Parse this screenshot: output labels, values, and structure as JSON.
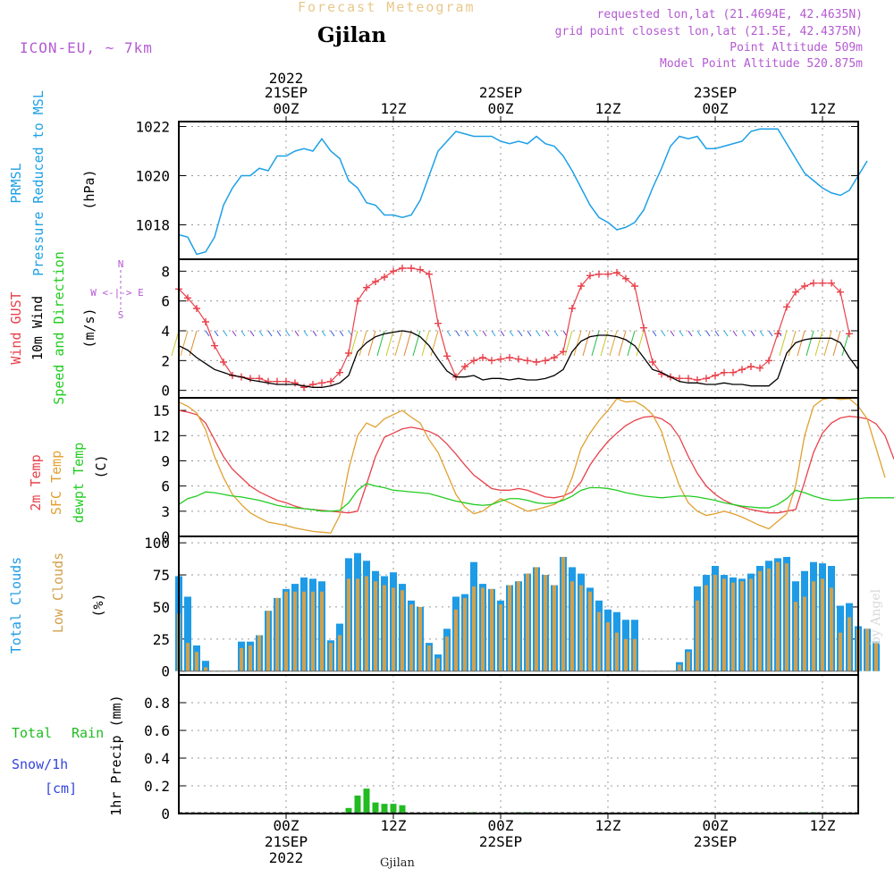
{
  "header": {
    "product": "Forecast Meteogram",
    "location": "Gjilan",
    "model": "ICON-EU, ~ 7km",
    "requested": "requested lon,lat (21.4694E, 42.4635N)",
    "grid_point": "grid point closest lon,lat (21.5E, 42.4375N)",
    "point_altitude": "Point Altitude 509m",
    "model_altitude": "Model Point Altitude 520.875m",
    "footer_location": "Gjilan",
    "watermark": "by Angel"
  },
  "time_axis": {
    "top_labels": [
      "2022",
      "21SEP",
      "00Z",
      "12Z",
      "22SEP",
      "00Z",
      "12Z",
      "23SEP",
      "00Z",
      "12Z"
    ],
    "bottom_labels": [
      "00Z",
      "21SEP",
      "2022",
      "12Z",
      "00Z",
      "22SEP",
      "12Z",
      "00Z",
      "23SEP",
      "12Z"
    ]
  },
  "panel_labels": {
    "pressure": [
      "PRMSL",
      "Pressure Reduced to MSL",
      "(hPa)"
    ],
    "wind": [
      "Wind GUST",
      "10m Wind",
      "Speed and Direction",
      "(m/s)"
    ],
    "compass": [
      "N",
      "W <-|-> E",
      "S"
    ],
    "temp": [
      "2m Temp",
      "SFC Temp",
      "dewpt Temp",
      "(C)"
    ],
    "clouds": [
      "Total Clouds",
      "Low Clouds",
      "(%)"
    ],
    "precip": [
      "Total",
      "Rain",
      "Snow/1h",
      "[cm]",
      "1hr Precip (mm)"
    ]
  },
  "colors": {
    "pressure": "#1ea0e6",
    "gust": "#e8414b",
    "wind": "#000000",
    "temp": "#e8414b",
    "sfc": "#e0a030",
    "dewpt": "#22cc22",
    "total_clouds": "#1e9be6",
    "low_clouds": "#d2a04b",
    "rain": "#22bb22",
    "snow": "#3344dd",
    "model": "#b45ad2"
  },
  "chart_data": [
    {
      "type": "line",
      "title": "PRMSL Pressure Reduced to MSL",
      "ylabel": "(hPa)",
      "ylim": [
        1016.6,
        1022.2
      ],
      "yticks": [
        1018,
        1020,
        1022
      ],
      "x_start_h": -12,
      "series": [
        {
          "name": "PRMSL",
          "values": [
            1017.6,
            1017.5,
            1016.8,
            1016.9,
            1017.5,
            1018.8,
            1019.5,
            1020.0,
            1020.0,
            1020.3,
            1020.2,
            1020.8,
            1020.8,
            1021.0,
            1021.1,
            1021.0,
            1021.5,
            1021.0,
            1020.7,
            1019.8,
            1019.5,
            1018.9,
            1018.8,
            1018.4,
            1018.4,
            1018.3,
            1018.4,
            1019.0,
            1020.0,
            1021.0,
            1021.4,
            1021.8,
            1021.7,
            1021.6,
            1021.6,
            1021.6,
            1021.4,
            1021.3,
            1021.4,
            1021.3,
            1021.6,
            1021.3,
            1021.2,
            1020.8,
            1020.2,
            1019.5,
            1018.8,
            1018.3,
            1018.1,
            1017.8,
            1017.9,
            1018.1,
            1018.6,
            1019.5,
            1020.3,
            1021.2,
            1021.6,
            1021.5,
            1021.6,
            1021.1,
            1021.1,
            1021.2,
            1021.3,
            1021.4,
            1021.8,
            1021.9,
            1021.9,
            1021.9,
            1021.3,
            1020.7,
            1020.1,
            1019.8,
            1019.5,
            1019.3,
            1019.2,
            1019.4,
            1020.0,
            1020.6
          ]
        }
      ]
    },
    {
      "type": "line",
      "title": "Wind GUST / 10m Wind Speed and Direction",
      "ylabel": "(m/s)",
      "ylim": [
        -0.5,
        8.8
      ],
      "yticks": [
        0,
        2,
        4,
        6,
        8
      ],
      "x_start_h": -12,
      "series": [
        {
          "name": "Wind GUST",
          "values": [
            6.8,
            6.2,
            5.5,
            4.6,
            3.0,
            1.9,
            1.0,
            0.9,
            0.8,
            0.8,
            0.6,
            0.6,
            0.6,
            0.5,
            0.2,
            0.4,
            0.5,
            0.6,
            1.2,
            2.5,
            6.0,
            6.9,
            7.3,
            7.6,
            8.0,
            8.2,
            8.2,
            8.1,
            7.8,
            4.5,
            2.3,
            0.9,
            1.6,
            2.0,
            2.2,
            2.0,
            2.1,
            2.2,
            2.1,
            2.0,
            1.9,
            2.0,
            2.2,
            2.6,
            5.5,
            7.0,
            7.7,
            7.8,
            7.8,
            7.9,
            7.5,
            7.0,
            4.2,
            1.9,
            1.1,
            0.9,
            0.8,
            0.8,
            0.7,
            0.8,
            1.0,
            1.2,
            1.2,
            1.4,
            1.6,
            1.5,
            2.0,
            3.8,
            5.6,
            6.6,
            7.0,
            7.2,
            7.2,
            7.2,
            6.6,
            3.8
          ]
        },
        {
          "name": "10m Wind",
          "values": [
            3.0,
            2.7,
            2.2,
            1.8,
            1.4,
            1.2,
            1.0,
            0.9,
            0.7,
            0.6,
            0.5,
            0.4,
            0.4,
            0.4,
            0.3,
            0.2,
            0.2,
            0.3,
            0.5,
            1.0,
            2.6,
            3.2,
            3.6,
            3.8,
            3.9,
            4.0,
            3.9,
            3.6,
            3.0,
            2.1,
            1.3,
            0.9,
            0.9,
            1.0,
            0.7,
            0.8,
            0.8,
            0.7,
            0.8,
            0.7,
            0.7,
            0.8,
            1.0,
            1.4,
            2.6,
            3.3,
            3.6,
            3.7,
            3.7,
            3.6,
            3.4,
            3.0,
            2.2,
            1.4,
            1.2,
            0.9,
            0.6,
            0.5,
            0.5,
            0.4,
            0.4,
            0.5,
            0.4,
            0.4,
            0.3,
            0.3,
            0.3,
            0.8,
            2.5,
            3.2,
            3.4,
            3.5,
            3.5,
            3.5,
            3.2,
            2.2,
            1.4
          ]
        }
      ]
    },
    {
      "type": "line",
      "title": "2m Temp / SFC Temp / dewpt Temp",
      "ylabel": "(C)",
      "ylim": [
        0,
        16.5
      ],
      "yticks": [
        0,
        3,
        6,
        9,
        12,
        15
      ],
      "x_start_h": -12,
      "series": [
        {
          "name": "2m Temp",
          "values": [
            15.0,
            14.8,
            14.5,
            13.5,
            11.5,
            9.5,
            8.0,
            7.0,
            6.0,
            5.3,
            4.8,
            4.3,
            4.0,
            3.6,
            3.3,
            3.2,
            3.1,
            3.0,
            2.9,
            2.8,
            3.0,
            6.2,
            9.5,
            11.8,
            12.3,
            12.8,
            13.0,
            12.8,
            12.5,
            12.0,
            11.0,
            9.8,
            8.5,
            7.3,
            6.5,
            5.7,
            5.5,
            5.5,
            5.7,
            5.5,
            5.1,
            4.7,
            4.6,
            4.8,
            5.3,
            6.5,
            8.5,
            10.0,
            11.3,
            12.3,
            13.2,
            13.8,
            14.2,
            14.3,
            14.0,
            13.3,
            11.8,
            9.5,
            7.5,
            6.0,
            5.0,
            4.3,
            3.8,
            3.5,
            3.2,
            3.0,
            2.8,
            2.8,
            3.0,
            3.2,
            6.5,
            10.0,
            12.3,
            13.5,
            14.1,
            14.3,
            14.2,
            14.0,
            13.4,
            12.0,
            9.2
          ]
        },
        {
          "name": "SFC Temp",
          "values": [
            16.0,
            15.5,
            14.7,
            12.7,
            9.5,
            7.0,
            5.0,
            3.8,
            2.8,
            2.2,
            1.7,
            1.5,
            1.3,
            1.0,
            0.8,
            0.6,
            0.5,
            0.4,
            2.5,
            8.0,
            12.0,
            13.5,
            13.0,
            14.0,
            14.5,
            15.0,
            14.2,
            13.5,
            11.5,
            10.0,
            7.5,
            5.0,
            3.5,
            2.7,
            3.0,
            3.8,
            4.5,
            4.0,
            3.5,
            3.0,
            3.2,
            3.5,
            3.8,
            4.5,
            7.0,
            10.5,
            12.3,
            13.8,
            15.0,
            16.4,
            16.0,
            16.1,
            15.5,
            14.5,
            12.5,
            9.0,
            6.0,
            4.0,
            3.0,
            2.5,
            2.7,
            3.0,
            2.7,
            2.3,
            1.8,
            1.3,
            0.9,
            1.8,
            2.7,
            6.0,
            12.0,
            15.5,
            16.3,
            16.5,
            16.3,
            16.4,
            15.5,
            14.0,
            10.5,
            7.0
          ]
        },
        {
          "name": "dewpt Temp",
          "values": [
            3.8,
            4.5,
            4.8,
            5.3,
            5.2,
            5.0,
            4.8,
            4.7,
            4.5,
            4.3,
            4.0,
            3.7,
            3.5,
            3.4,
            3.3,
            3.2,
            3.0,
            3.0,
            3.1,
            4.0,
            5.5,
            6.3,
            6.0,
            5.8,
            5.5,
            5.4,
            5.3,
            5.2,
            5.1,
            4.8,
            4.5,
            4.2,
            4.0,
            3.8,
            3.7,
            3.8,
            4.2,
            4.5,
            4.5,
            4.3,
            4.0,
            3.9,
            4.0,
            4.3,
            4.8,
            5.5,
            5.8,
            5.8,
            5.7,
            5.5,
            5.2,
            5.0,
            4.8,
            4.7,
            4.6,
            4.7,
            4.8,
            4.8,
            4.7,
            4.5,
            4.3,
            4.0,
            3.8,
            3.6,
            3.5,
            3.4,
            3.4,
            3.8,
            4.5,
            5.5,
            5.2,
            4.8,
            4.5,
            4.3,
            4.3,
            4.4,
            4.5,
            4.6,
            4.6,
            4.6,
            4.6
          ]
        }
      ]
    },
    {
      "type": "bar",
      "title": "Total Clouds / Low Clouds",
      "ylabel": "(%)",
      "ylim": [
        -3,
        105
      ],
      "yticks": [
        0,
        25,
        50,
        75,
        100
      ],
      "x_start_h": -12,
      "series": [
        {
          "name": "Total Clouds",
          "values": [
            74,
            58,
            20,
            8,
            0,
            0,
            0,
            23,
            23,
            28,
            47,
            57,
            64,
            68,
            73,
            72,
            70,
            24,
            37,
            88,
            92,
            86,
            78,
            74,
            77,
            68,
            55,
            50,
            22,
            13,
            33,
            58,
            60,
            85,
            68,
            64,
            55,
            67,
            70,
            76,
            81,
            75,
            67,
            89,
            81,
            76,
            65,
            55,
            48,
            46,
            40,
            40,
            0,
            0,
            0,
            0,
            7,
            17,
            66,
            75,
            82,
            75,
            73,
            72,
            76,
            82,
            86,
            88,
            89,
            70,
            78,
            85,
            84,
            82,
            51,
            53,
            35,
            33,
            23,
            0,
            0
          ]
        },
        {
          "name": "Low Clouds",
          "values": [
            45,
            22,
            15,
            3,
            0,
            0,
            0,
            18,
            20,
            28,
            47,
            57,
            62,
            62,
            62,
            62,
            62,
            22,
            28,
            72,
            72,
            74,
            70,
            67,
            65,
            63,
            52,
            50,
            20,
            10,
            27,
            48,
            57,
            66,
            65,
            64,
            52,
            67,
            70,
            76,
            81,
            75,
            67,
            89,
            70,
            67,
            62,
            46,
            38,
            30,
            25,
            25,
            0,
            0,
            0,
            0,
            5,
            15,
            55,
            67,
            75,
            72,
            69,
            70,
            72,
            78,
            80,
            85,
            84,
            54,
            58,
            70,
            72,
            65,
            30,
            42,
            33,
            33,
            22,
            0,
            0
          ]
        }
      ]
    },
    {
      "type": "bar",
      "title": "1hr Precip (mm)",
      "ylabel": "1hr Precip (mm)",
      "ylim": [
        0,
        1.0
      ],
      "yticks": [
        0,
        0.2,
        0.4,
        0.6,
        0.8
      ],
      "x_start_h": -12,
      "series": [
        {
          "name": "Total Rain",
          "values": [
            0,
            0,
            0,
            0,
            0,
            0,
            0,
            0,
            0,
            0,
            0,
            0,
            0,
            0,
            0,
            0,
            0,
            0,
            0,
            0.04,
            0.13,
            0.18,
            0.08,
            0.07,
            0.07,
            0.06,
            0,
            0,
            0,
            0,
            0,
            0,
            0,
            0.01,
            0,
            0,
            0,
            0,
            0.01,
            0.01,
            0,
            0,
            0,
            0,
            0,
            0,
            0,
            0,
            0,
            0,
            0,
            0,
            0,
            0,
            0,
            0,
            0,
            0,
            0,
            0,
            0,
            0,
            0,
            0,
            0,
            0,
            0,
            0,
            0,
            0,
            0.01,
            0.01,
            0,
            0,
            0,
            0,
            0,
            0,
            0,
            0,
            0
          ]
        },
        {
          "name": "Snow/1h",
          "values": []
        }
      ]
    }
  ]
}
